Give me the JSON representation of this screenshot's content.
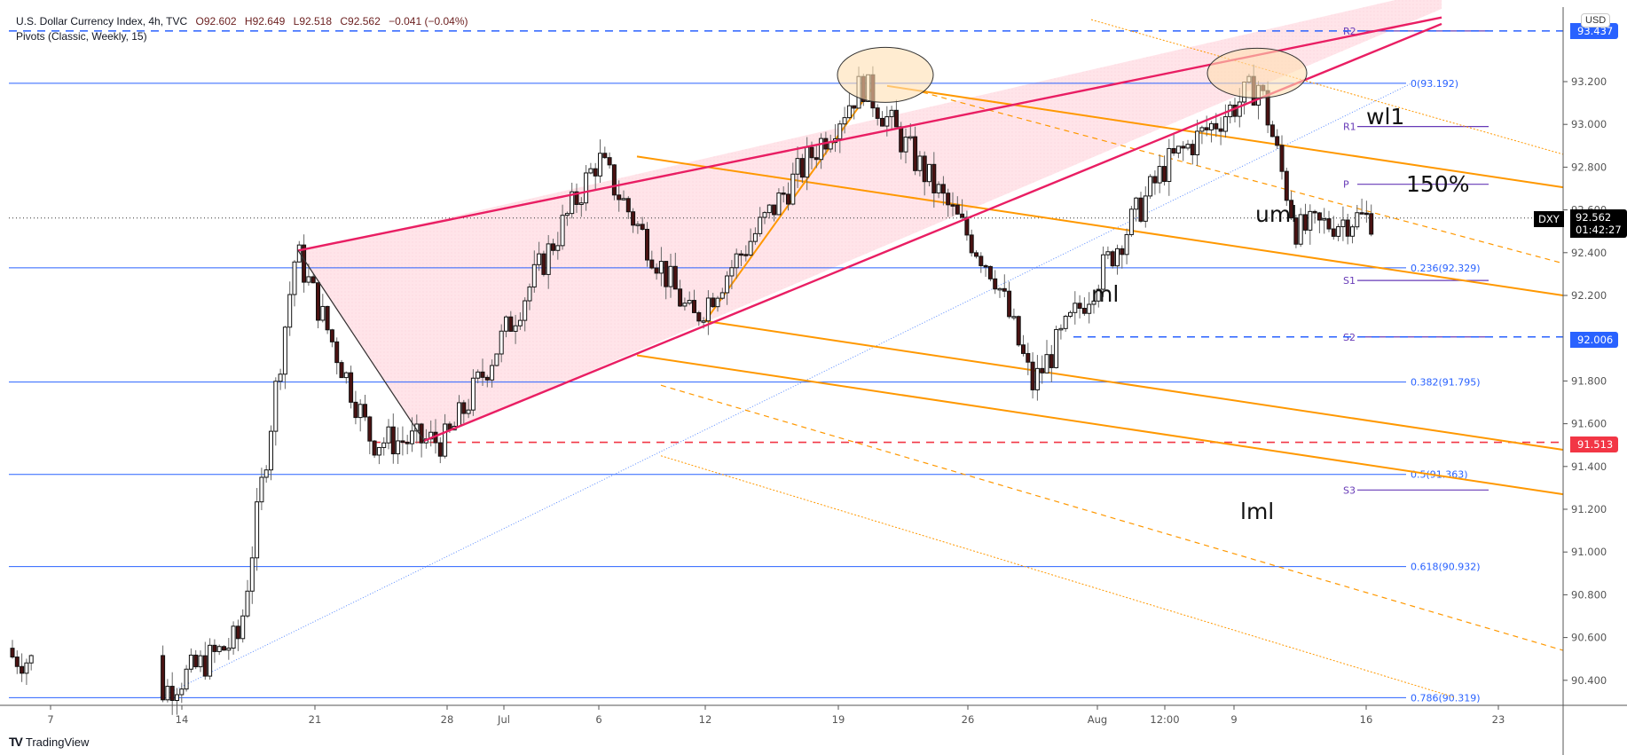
{
  "header": {
    "symbol_line": "U.S. Dollar Currency Index, 4h, TVC",
    "open": "O92.602",
    "high": "H92.649",
    "low": "L92.518",
    "close": "C92.562",
    "change": "−0.041 (−0.04%)",
    "indicator": "Pivots (Classic, Weekly, 15)"
  },
  "axis": {
    "currency": "USD",
    "price_ticks": [
      "93.200",
      "93.000",
      "92.800",
      "92.600",
      "92.400",
      "92.200",
      "91.800",
      "91.600",
      "91.400",
      "91.200",
      "91.000",
      "90.800",
      "90.600",
      "90.400"
    ],
    "time_ticks": [
      "7",
      "14",
      "21",
      "28",
      "Jul",
      "6",
      "12",
      "19",
      "26",
      "Aug",
      "12:00",
      "9",
      "16",
      "23"
    ]
  },
  "price_tags": {
    "r2_line": "93.437",
    "support_line": "92.006",
    "red_line": "91.513",
    "symbol": "DXY",
    "last_price": "92.562",
    "countdown": "01:42:27"
  },
  "fib_levels": [
    {
      "label": "0(93.192)",
      "price": 93.192
    },
    {
      "label": "0.236(92.329)",
      "price": 92.329
    },
    {
      "label": "0.382(91.795)",
      "price": 91.795
    },
    {
      "label": "0.5(91.363)",
      "price": 91.363
    },
    {
      "label": "0.618(90.932)",
      "price": 90.932
    },
    {
      "label": "0.786(90.319)",
      "price": 90.319
    }
  ],
  "pivots": [
    {
      "label": "R2",
      "price": 93.437
    },
    {
      "label": "R1",
      "price": 92.99
    },
    {
      "label": "P",
      "price": 92.72
    },
    {
      "label": "S1",
      "price": 92.27
    },
    {
      "label": "S2",
      "price": 92.006
    },
    {
      "label": "S3",
      "price": 91.29
    }
  ],
  "annotations": {
    "wl1": "wl1",
    "p150": "150%",
    "uml": "uml",
    "ml": "ml",
    "lml": "lml"
  },
  "branding": {
    "logo_text": "TradingView"
  },
  "colors": {
    "bull_candle": "#ffffff",
    "bear_candle": "#4a1212",
    "fib": "#2962ff",
    "pivot": "#673ab7",
    "pitchfork": "#ff9800",
    "wedge": "#e91e63",
    "wedge_fill": "#ffe0e6",
    "red_line": "#f23645",
    "highlight_ellipse": "#ffe0b2"
  },
  "chart_data": {
    "type": "candlestick",
    "title": "U.S. Dollar Currency Index, 4h, TVC",
    "xlabel": "",
    "ylabel": "USD",
    "ylim": [
      90.32,
      93.5
    ],
    "x_ticks": [
      "7",
      "14",
      "21",
      "28",
      "Jul",
      "6",
      "12",
      "19",
      "26",
      "Aug",
      "12:00",
      "9",
      "16",
      "23"
    ],
    "y_ticks": [
      93.2,
      93.0,
      92.8,
      92.6,
      92.4,
      92.2,
      92.0,
      91.8,
      91.6,
      91.4,
      91.2,
      91.0,
      90.8,
      90.6,
      90.4
    ],
    "last": {
      "open": 92.602,
      "high": 92.649,
      "low": 92.518,
      "close": 92.562,
      "change": -0.041,
      "change_pct": -0.04
    },
    "swing_points": [
      {
        "date": "Jun 4",
        "price": 90.55
      },
      {
        "date": "Jun 14",
        "price": 90.35
      },
      {
        "date": "Jun 18",
        "price": 90.6
      },
      {
        "date": "Jun 21",
        "price": 92.41
      },
      {
        "date": "Jun 25",
        "price": 91.52
      },
      {
        "date": "Jun 29",
        "price": 91.52
      },
      {
        "date": "Jul 7",
        "price": 92.84
      },
      {
        "date": "Jul 12",
        "price": 92.08
      },
      {
        "date": "Jul 21",
        "price": 93.19
      },
      {
        "date": "Jul 28",
        "price": 92.3
      },
      {
        "date": "Jul 30",
        "price": 91.78
      },
      {
        "date": "Aug 6",
        "price": 92.8
      },
      {
        "date": "Aug 11",
        "price": 93.19
      },
      {
        "date": "Aug 13",
        "price": 92.5
      },
      {
        "date": "Aug 16",
        "price": 92.562
      }
    ],
    "horizontal_levels": {
      "fibonacci": [
        93.192,
        92.329,
        91.795,
        91.363,
        90.932,
        90.319
      ],
      "pivots": {
        "R2": 93.437,
        "R1": 92.99,
        "P": 92.72,
        "S1": 92.27,
        "S2": 92.006,
        "S3": 91.29
      },
      "support_dashed": 92.006,
      "red_dashed": 91.513
    },
    "annotations": [
      "wl1",
      "150%",
      "uml",
      "ml",
      "lml"
    ],
    "legend": []
  }
}
